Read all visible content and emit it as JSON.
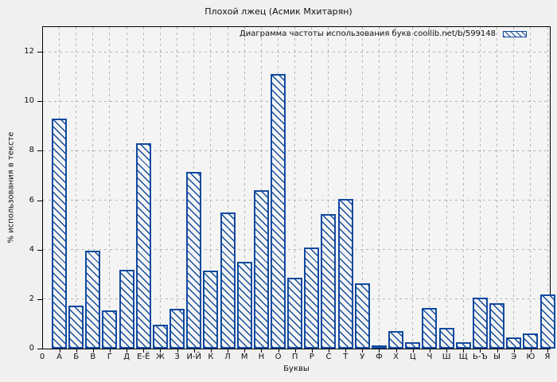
{
  "title": "Плохой лжец (Асмик Мхитарян)",
  "legend": {
    "label": "Диаграмма частоты использования букв coollib.net/b/599148"
  },
  "axes": {
    "x_label": "Буквы",
    "y_label": "% использования в тексте",
    "x_origin_label": "0",
    "y_tick_labels": [
      "0",
      "2",
      "4",
      "6",
      "8",
      "10",
      "12"
    ]
  },
  "chart_data": {
    "type": "bar",
    "title": "Плохой лжец (Асмик Мхитарян)",
    "legend_entry": "Диаграмма частоты использования букв coollib.net/b/599148",
    "xlabel": "Буквы",
    "ylabel": "% использования в тексте",
    "ylim": [
      0,
      13
    ],
    "y_tick_step": 2,
    "grid": true,
    "legend_position": "top-right-inside",
    "bar_style": "hatched-diagonal",
    "categories": [
      "А",
      "Б",
      "В",
      "Г",
      "Д",
      "Е-Ё",
      "Ж",
      "З",
      "И-Й",
      "К",
      "Л",
      "М",
      "Н",
      "О",
      "П",
      "Р",
      "С",
      "Т",
      "У",
      "Ф",
      "Х",
      "Ц",
      "Ч",
      "Ш",
      "Щ",
      "Ь-Ъ",
      "Ы",
      "Э",
      "Ю",
      "Я"
    ],
    "values": [
      9.3,
      1.75,
      3.95,
      1.55,
      3.2,
      8.3,
      0.95,
      1.6,
      7.15,
      3.15,
      5.5,
      3.5,
      6.4,
      11.1,
      2.85,
      4.1,
      5.45,
      6.05,
      2.65,
      0.1,
      0.7,
      0.25,
      1.65,
      0.85,
      0.25,
      2.05,
      1.85,
      0.45,
      0.6,
      2.2
    ]
  },
  "colors": {
    "bar": "#114a9f",
    "grid": "#b4b4b4",
    "axis": "#000000",
    "fig_bg": "#f0f0f0",
    "plot_bg": "#f4f4f4",
    "text": "#111111"
  }
}
